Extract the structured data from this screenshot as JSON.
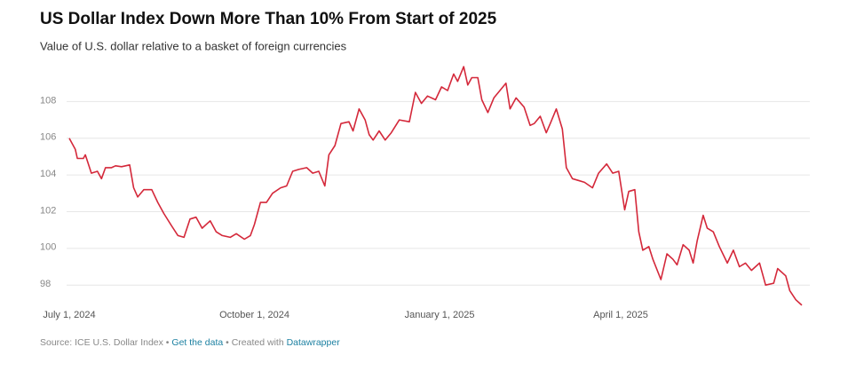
{
  "chart_data": {
    "type": "line",
    "title": "US Dollar Index Down More Than 10% From Start of 2025",
    "subtitle": "Value of U.S. dollar relative to a basket of foreign currencies",
    "footer": [
      "Source: ICE U.S. Dollar Index • ",
      "Get the data",
      " • Created with ",
      "Datawrapper"
    ],
    "x": [
      "2024-07-01",
      "2024-07-04",
      "2024-07-05",
      "2024-07-08",
      "2024-07-09",
      "2024-07-12",
      "2024-07-15",
      "2024-07-17",
      "2024-07-19",
      "2024-07-22",
      "2024-07-24",
      "2024-07-27",
      "2024-07-31",
      "2024-08-02",
      "2024-08-04",
      "2024-08-07",
      "2024-08-11",
      "2024-08-14",
      "2024-08-17",
      "2024-08-21",
      "2024-08-24",
      "2024-08-27",
      "2024-08-30",
      "2024-09-02",
      "2024-09-05",
      "2024-09-09",
      "2024-09-12",
      "2024-09-15",
      "2024-09-19",
      "2024-09-22",
      "2024-09-26",
      "2024-09-29",
      "2024-10-01",
      "2024-10-04",
      "2024-10-07",
      "2024-10-10",
      "2024-10-14",
      "2024-10-17",
      "2024-10-20",
      "2024-10-23",
      "2024-10-27",
      "2024-10-30",
      "2024-11-02",
      "2024-11-05",
      "2024-11-07",
      "2024-11-10",
      "2024-11-13",
      "2024-11-17",
      "2024-11-19",
      "2024-11-22",
      "2024-11-25",
      "2024-11-27",
      "2024-11-29",
      "2024-12-02",
      "2024-12-05",
      "2024-12-08",
      "2024-12-12",
      "2024-12-17",
      "2024-12-20",
      "2024-12-23",
      "2024-12-26",
      "2024-12-30",
      "2025-01-02",
      "2025-01-05",
      "2025-01-08",
      "2025-01-10",
      "2025-01-13",
      "2025-01-15",
      "2025-01-17",
      "2025-01-20",
      "2025-01-22",
      "2025-01-25",
      "2025-01-28",
      "2025-01-31",
      "2025-02-03",
      "2025-02-05",
      "2025-02-08",
      "2025-02-12",
      "2025-02-15",
      "2025-02-17",
      "2025-02-20",
      "2025-02-23",
      "2025-02-25",
      "2025-02-28",
      "2025-03-03",
      "2025-03-05",
      "2025-03-08",
      "2025-03-11",
      "2025-03-14",
      "2025-03-18",
      "2025-03-21",
      "2025-03-25",
      "2025-03-28",
      "2025-03-31",
      "2025-04-03",
      "2025-04-05",
      "2025-04-08",
      "2025-04-10",
      "2025-04-12",
      "2025-04-15",
      "2025-04-17",
      "2025-04-21",
      "2025-04-24",
      "2025-04-27",
      "2025-04-29",
      "2025-05-02",
      "2025-05-05",
      "2025-05-07",
      "2025-05-09",
      "2025-05-12",
      "2025-05-14",
      "2025-05-17",
      "2025-05-20",
      "2025-05-24",
      "2025-05-27",
      "2025-05-30",
      "2025-06-02",
      "2025-06-05",
      "2025-06-09",
      "2025-06-12",
      "2025-06-16",
      "2025-06-18",
      "2025-06-22",
      "2025-06-24",
      "2025-06-27",
      "2025-06-30"
    ],
    "series": [
      {
        "name": "US Dollar Index",
        "color": "#d4283a",
        "values": [
          106.0,
          105.4,
          104.9,
          104.9,
          105.1,
          104.1,
          104.2,
          103.8,
          104.4,
          104.4,
          104.5,
          104.45,
          104.55,
          103.3,
          102.8,
          103.2,
          103.2,
          102.5,
          101.9,
          101.2,
          100.7,
          100.6,
          101.6,
          101.7,
          101.1,
          101.5,
          100.9,
          100.7,
          100.6,
          100.8,
          100.5,
          100.7,
          101.3,
          102.5,
          102.5,
          103.0,
          103.3,
          103.4,
          104.2,
          104.3,
          104.4,
          104.1,
          104.2,
          103.4,
          105.1,
          105.6,
          106.8,
          106.9,
          106.4,
          107.6,
          107.0,
          106.2,
          105.9,
          106.4,
          105.9,
          106.3,
          107.0,
          106.9,
          108.5,
          107.9,
          108.3,
          108.1,
          108.8,
          108.6,
          109.5,
          109.1,
          109.9,
          108.9,
          109.3,
          109.3,
          108.1,
          107.4,
          108.2,
          108.6,
          109.0,
          107.6,
          108.2,
          107.7,
          106.7,
          106.8,
          107.2,
          106.3,
          106.8,
          107.6,
          106.5,
          104.4,
          103.8,
          103.7,
          103.6,
          103.3,
          104.1,
          104.6,
          104.1,
          104.2,
          102.1,
          103.1,
          103.2,
          100.9,
          99.9,
          100.1,
          99.4,
          98.3,
          99.7,
          99.4,
          99.1,
          100.2,
          99.9,
          99.2,
          100.4,
          101.8,
          101.1,
          100.9,
          100.1,
          99.2,
          99.9,
          99.0,
          99.2,
          98.8,
          99.2,
          98.0,
          98.1,
          98.9,
          98.5,
          97.7,
          97.2,
          96.9
        ]
      }
    ],
    "xlim": [
      "2024-07-01",
      "2025-06-30"
    ],
    "xticks": [
      {
        "value": "2024-07-01",
        "label": "July 1, 2024"
      },
      {
        "value": "2024-10-01",
        "label": "October 1, 2024"
      },
      {
        "value": "2025-01-01",
        "label": "January 1, 2025"
      },
      {
        "value": "2025-04-01",
        "label": "April 1, 2025"
      }
    ],
    "ylim": [
      96.8,
      110.1
    ],
    "yticks": [
      98,
      100,
      102,
      104,
      106,
      108
    ],
    "grid": true
  }
}
